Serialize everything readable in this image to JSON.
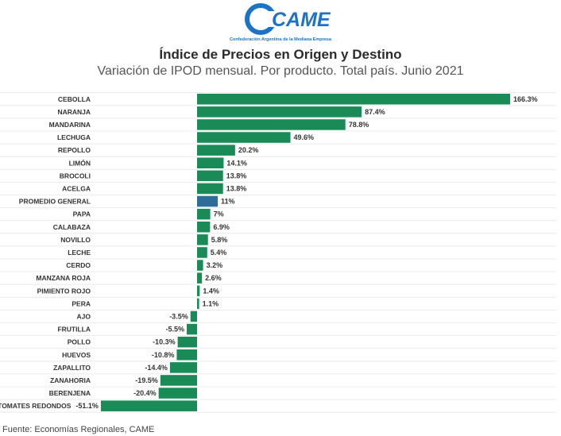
{
  "logo": {
    "text": "CAME",
    "tagline": "Confederación Argentina de la Mediana Empresa",
    "color": "#1a73c8"
  },
  "header": {
    "title": "Índice de Precios en Origen y Destino",
    "subtitle": "Variación de IPOD mensual. Por producto. Total país. Junio 2021"
  },
  "footer": {
    "source": "Fuente: Economías Regionales, CAME"
  },
  "colors": {
    "bar": "#1a8a57",
    "highlight": "#2e6d99",
    "grid": "#e6e6e6"
  },
  "chart_data": {
    "type": "bar",
    "orientation": "horizontal",
    "categories": [
      "CEBOLLA",
      "NARANJA",
      "MANDARINA",
      "LECHUGA",
      "REPOLLO",
      "LIMÓN",
      "BROCOLI",
      "ACELGA",
      "PROMEDIO GENERAL",
      "PAPA",
      "CALABAZA",
      "NOVILLO",
      "LECHE",
      "CERDO",
      "MANZANA ROJA",
      "PIMIENTO ROJO",
      "PERA",
      "AJO",
      "FRUTILLA",
      "POLLO",
      "HUEVOS",
      "ZAPALLITO",
      "ZANAHORIA",
      "BERENJENA",
      "TOMATES REDONDOS"
    ],
    "values": [
      166.3,
      87.4,
      78.8,
      49.6,
      20.2,
      14.1,
      13.8,
      13.8,
      11,
      7,
      6.9,
      5.8,
      5.4,
      3.2,
      2.6,
      1.4,
      1.1,
      -3.5,
      -5.5,
      -10.3,
      -10.8,
      -14.4,
      -19.5,
      -20.4,
      -51.1
    ],
    "labels": [
      "166.3%",
      "87.4%",
      "78.8%",
      "49.6%",
      "20.2%",
      "14.1%",
      "13.8%",
      "13.8%",
      "11%",
      "7%",
      "6.9%",
      "5.8%",
      "5.4%",
      "3.2%",
      "2.6%",
      "1.4%",
      "1.1%",
      "-3.5%",
      "-5.5%",
      "-10.3%",
      "-10.8%",
      "-14.4%",
      "-19.5%",
      "-20.4%",
      "-51.1%"
    ],
    "highlight_category": "PROMEDIO GENERAL",
    "xlim": [
      -51.1,
      166.3
    ],
    "grid": "horizontal-lines"
  }
}
